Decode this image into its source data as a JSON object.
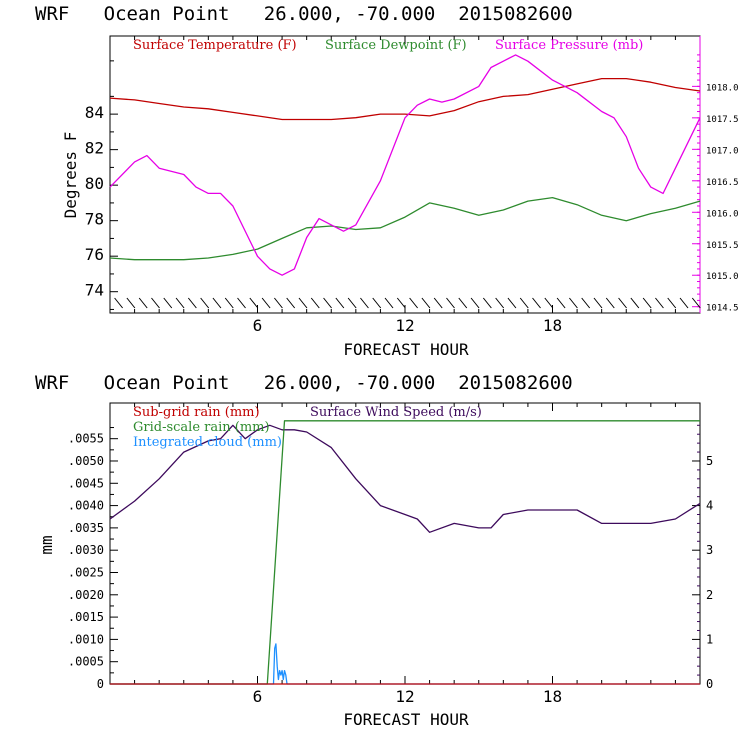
{
  "chart_data": [
    {
      "type": "line",
      "title": "WRF   Ocean Point   26.000, -70.000  2015082600",
      "xlabel": "FORECAST HOUR",
      "ylabel": "Degrees F",
      "xlim": [
        0,
        24
      ],
      "ylim": [
        72.8,
        88.4
      ],
      "xticks": [
        6,
        12,
        18
      ],
      "yticks": [
        74,
        76,
        78,
        80,
        82,
        84
      ],
      "y2lim": [
        1014.4,
        1018.8
      ],
      "y2ticks": [
        1014.5,
        1015.0,
        1015.5,
        1016.0,
        1016.5,
        1017.0,
        1017.5,
        1018.0
      ],
      "y2tick_labels": [
        "1014.5",
        "1015.0",
        "1015.5",
        "1016.0",
        "1016.5",
        "1017.0",
        "1017.5",
        "1018.0"
      ],
      "legend": [
        {
          "name": "Surface Temperature (F)",
          "color": "#c00000"
        },
        {
          "name": "Surface Dewpoint (F)",
          "color": "#2e8b2e"
        },
        {
          "name": "Surface Pressure (mb)",
          "color": "#e600e6"
        }
      ],
      "series": [
        {
          "name": "Surface Temperature (F)",
          "axis": "left",
          "color": "#c00000",
          "x": [
            0,
            1,
            2,
            3,
            4,
            5,
            6,
            7,
            8,
            9,
            10,
            11,
            12,
            13,
            14,
            15,
            16,
            17,
            18,
            19,
            20,
            21,
            22,
            23,
            24
          ],
          "values": [
            84.9,
            84.8,
            84.6,
            84.4,
            84.3,
            84.1,
            83.9,
            83.7,
            83.7,
            83.7,
            83.8,
            84.0,
            84.0,
            83.9,
            84.2,
            84.7,
            85.0,
            85.1,
            85.4,
            85.7,
            86.0,
            86.0,
            85.8,
            85.5,
            85.3
          ]
        },
        {
          "name": "Surface Dewpoint (F)",
          "axis": "left",
          "color": "#2e8b2e",
          "x": [
            0,
            1,
            2,
            3,
            4,
            5,
            6,
            7,
            8,
            9,
            10,
            11,
            12,
            13,
            14,
            15,
            16,
            17,
            18,
            19,
            20,
            21,
            22,
            23,
            24
          ],
          "values": [
            75.9,
            75.8,
            75.8,
            75.8,
            75.9,
            76.1,
            76.4,
            77.0,
            77.6,
            77.7,
            77.5,
            77.6,
            78.2,
            79.0,
            78.7,
            78.3,
            78.6,
            79.1,
            79.3,
            78.9,
            78.3,
            78.0,
            78.4,
            78.7,
            79.1
          ]
        },
        {
          "name": "Surface Pressure (mb)",
          "axis": "right",
          "color": "#e600e6",
          "x": [
            0,
            1,
            1.5,
            2,
            3,
            3.5,
            4,
            4.5,
            5,
            6,
            6.5,
            7,
            7.5,
            8,
            8.5,
            9,
            9.5,
            10,
            11,
            12,
            12.5,
            13,
            13.5,
            14,
            15,
            15.5,
            16,
            16.5,
            17,
            18,
            19,
            20,
            20.5,
            21,
            21.5,
            22,
            22.5,
            23,
            24
          ],
          "values": [
            1016.4,
            1016.8,
            1016.9,
            1016.7,
            1016.6,
            1016.4,
            1016.3,
            1016.3,
            1016.1,
            1015.3,
            1015.1,
            1015.0,
            1015.1,
            1015.6,
            1015.9,
            1015.8,
            1015.7,
            1015.8,
            1016.5,
            1017.5,
            1017.7,
            1017.8,
            1017.75,
            1017.8,
            1018.0,
            1018.3,
            1018.4,
            1018.5,
            1018.4,
            1018.1,
            1017.9,
            1017.6,
            1017.5,
            1017.2,
            1016.7,
            1016.4,
            1016.3,
            1016.7,
            1017.5
          ]
        }
      ],
      "annotations": {
        "wind_barbs_row": "calm wind barbs along bottom at 74 F level"
      }
    },
    {
      "type": "line",
      "title": "WRF   Ocean Point   26.000, -70.000  2015082600",
      "xlabel": "FORECAST HOUR",
      "ylabel": "mm",
      "xlim": [
        0,
        24
      ],
      "ylim": [
        0,
        0.0063
      ],
      "xticks": [
        6,
        12,
        18
      ],
      "yticks": [
        0,
        0.0005,
        0.001,
        0.0015,
        0.002,
        0.0025,
        0.003,
        0.0035,
        0.004,
        0.0045,
        0.005,
        0.0055
      ],
      "ytick_labels": [
        "0",
        ".0005",
        ".0010",
        ".0015",
        ".0020",
        ".0025",
        ".0030",
        ".0035",
        ".0040",
        ".0045",
        ".0050",
        ".0055"
      ],
      "y2lim": [
        0,
        6.3
      ],
      "y2ticks": [
        0,
        1,
        2,
        3,
        4,
        5
      ],
      "y2tick_labels": [
        "0",
        "1",
        "2",
        "3",
        "4",
        "5"
      ],
      "legend": [
        {
          "name": "Sub-grid rain (mm)",
          "color": "#c00000"
        },
        {
          "name": "Grid-scale rain (mm)",
          "color": "#2e8b2e"
        },
        {
          "name": "Integrated cloud (mm)",
          "color": "#1e90ff"
        },
        {
          "name": "Surface Wind Speed (m/s)",
          "color": "#3d0a5c"
        }
      ],
      "series": [
        {
          "name": "Surface Wind Speed (m/s)",
          "axis": "right",
          "color": "#3d0a5c",
          "x": [
            0,
            1,
            2,
            3,
            4,
            4.5,
            5,
            5.5,
            6,
            6.5,
            7,
            7.5,
            8,
            9,
            10,
            11,
            12,
            12.5,
            13,
            14,
            15,
            15.5,
            16,
            17,
            18,
            19,
            20,
            21,
            22,
            23,
            24
          ],
          "values": [
            3.7,
            4.1,
            4.6,
            5.2,
            5.45,
            5.5,
            5.8,
            5.5,
            5.7,
            5.8,
            5.7,
            5.7,
            5.65,
            5.3,
            4.6,
            4.0,
            3.8,
            3.7,
            3.4,
            3.6,
            3.5,
            3.5,
            3.8,
            3.9,
            3.9,
            3.9,
            3.6,
            3.6,
            3.6,
            3.7,
            4.05
          ]
        },
        {
          "name": "Grid-scale rain (mm)",
          "axis": "left",
          "color": "#2e8b2e",
          "x": [
            0,
            6.4,
            7.1,
            24
          ],
          "values": [
            0,
            0,
            0.0059,
            0.0059
          ]
        },
        {
          "name": "Integrated cloud (mm)",
          "axis": "left",
          "color": "#1e90ff",
          "x": [
            0,
            6.65,
            6.7,
            6.75,
            6.8,
            6.85,
            6.9,
            6.95,
            7.0,
            7.05,
            7.1,
            7.15,
            7.2,
            24
          ],
          "values": [
            0,
            0,
            0.0008,
            0.0009,
            0.0004,
            0.0001,
            0.0003,
            0.0002,
            0.0003,
            0.0001,
            0.0003,
            0.0002,
            0,
            0
          ]
        },
        {
          "name": "Sub-grid rain (mm)",
          "axis": "left",
          "color": "#c00000",
          "x": [
            0,
            24
          ],
          "values": [
            0,
            0
          ]
        }
      ]
    }
  ]
}
